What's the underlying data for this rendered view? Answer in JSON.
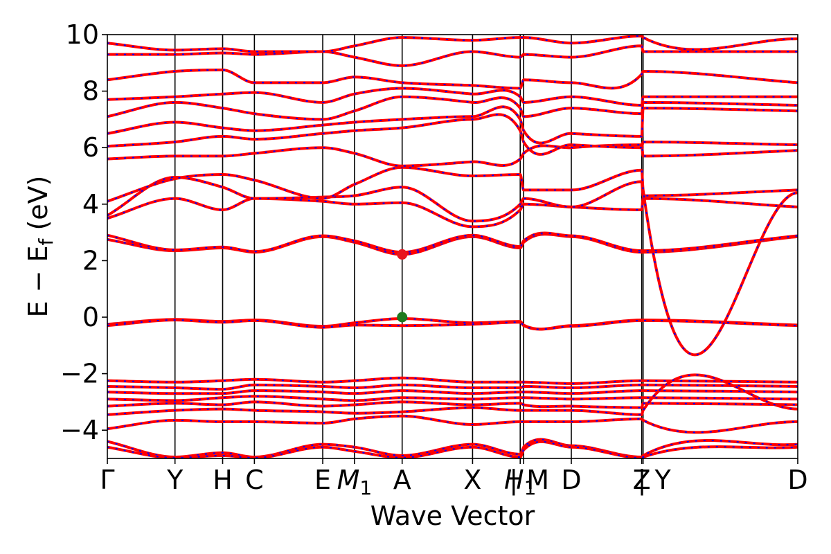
{
  "chart_data": {
    "type": "line",
    "title": "",
    "xlabel": "Wave Vector",
    "ylabel": "E − E_f (eV)",
    "ylim": [
      -5,
      10
    ],
    "yticks": [
      -4,
      -2,
      0,
      2,
      4,
      6,
      8,
      10
    ],
    "ytick_labels": [
      "−4",
      "−2",
      "0",
      "2",
      "4",
      "6",
      "8",
      "10"
    ],
    "xlim": [
      0,
      10
    ],
    "kpoints": [
      {
        "label": "Γ",
        "x": 0
      },
      {
        "label": "Y",
        "x": 0.98
      },
      {
        "label": "H",
        "x": 1.67
      },
      {
        "label": "C",
        "x": 2.13
      },
      {
        "label": "E",
        "x": 3.12
      },
      {
        "label": "M",
        "sub": "1",
        "italic": true,
        "x": 3.58
      },
      {
        "label": "A",
        "x": 4.27
      },
      {
        "label": "X",
        "x": 5.29
      },
      {
        "label": "H",
        "sub": "1",
        "italic": true,
        "x": 5.98
      },
      {
        "label": "| M",
        "x": 6.03
      },
      {
        "label": "D",
        "x": 6.72
      },
      {
        "label": "Z",
        "x": 7.74
      },
      {
        "label": "| Y",
        "x": 7.76
      },
      {
        "label": "D",
        "x": 10
      }
    ],
    "vertical_lines": [
      0.98,
      1.67,
      2.13,
      3.12,
      3.58,
      4.27,
      5.29,
      5.98,
      6.03,
      6.72,
      7.74,
      7.76
    ],
    "markers": [
      {
        "name": "cbm",
        "x": 4.27,
        "y": 2.22,
        "color": "#e8141e"
      },
      {
        "name": "vbm",
        "x": 4.27,
        "y": 0.0,
        "color": "#1f7a1f"
      }
    ],
    "style": {
      "band_color": "#ff0000",
      "overlay_color": "#0000ff"
    },
    "series": [
      {
        "x": [
          0,
          0.98,
          1.67,
          2.13,
          3.12,
          3.58,
          4.27,
          5.29,
          5.98,
          6.03,
          6.72,
          7.74,
          7.76,
          10
        ],
        "y": [
          -0.25,
          -0.08,
          -0.15,
          -0.1,
          -0.32,
          -0.2,
          -0.05,
          -0.2,
          -0.15,
          -0.28,
          -0.3,
          -0.1,
          -0.1,
          -0.28
        ]
      },
      {
        "x": [
          0,
          0.98,
          1.67,
          2.13,
          3.12,
          3.58,
          4.27,
          5.29,
          5.98,
          6.03,
          6.72,
          7.74,
          7.76,
          10
        ],
        "y": [
          -0.3,
          -0.1,
          -0.18,
          -0.12,
          -0.36,
          -0.28,
          -0.3,
          -0.25,
          -0.18,
          -0.3,
          -0.32,
          -0.12,
          -0.12,
          -0.3
        ]
      },
      {
        "x": [
          0,
          0.98,
          1.67,
          2.13,
          3.12,
          3.58,
          4.27,
          5.29,
          5.98,
          6.03,
          6.72,
          7.74,
          7.76,
          10
        ],
        "y": [
          2.75,
          2.35,
          2.45,
          2.3,
          2.85,
          2.65,
          2.22,
          2.85,
          2.45,
          2.65,
          2.85,
          2.3,
          2.3,
          2.85
        ]
      },
      {
        "x": [
          0,
          0.98,
          1.67,
          2.13,
          3.12,
          3.58,
          4.27,
          5.29,
          5.98,
          6.03,
          6.72,
          7.74,
          7.76,
          10
        ],
        "y": [
          2.9,
          2.38,
          2.48,
          2.32,
          2.88,
          2.7,
          2.3,
          2.9,
          2.5,
          2.7,
          2.88,
          2.35,
          2.35,
          2.88
        ]
      },
      {
        "x": [
          0,
          0.98,
          1.67,
          2.13,
          3.12,
          3.58,
          4.27,
          5.29,
          5.98,
          6.03,
          6.72,
          7.74,
          7.76,
          10
        ],
        "y": [
          3.5,
          4.2,
          3.8,
          4.2,
          4.1,
          4.0,
          4.05,
          3.2,
          3.8,
          4.0,
          3.9,
          3.8,
          4.2,
          3.9
        ]
      },
      {
        "x": [
          0,
          0.98,
          1.67,
          2.13,
          3.12,
          3.58,
          4.27,
          5.29,
          5.98,
          6.03,
          6.72,
          7.74,
          7.76,
          10
        ],
        "y": [
          3.6,
          4.95,
          4.6,
          4.2,
          4.25,
          4.3,
          4.6,
          3.4,
          4.0,
          4.2,
          3.9,
          4.8,
          4.3,
          4.5
        ]
      },
      {
        "x": [
          0,
          0.98,
          1.67,
          2.13,
          3.12,
          3.58,
          4.27,
          5.29,
          5.98,
          6.03,
          6.72,
          7.74,
          7.76,
          10
        ],
        "y": [
          4.1,
          4.9,
          5.05,
          4.85,
          4.2,
          4.7,
          5.3,
          5.0,
          5.05,
          4.5,
          4.5,
          5.2,
          4.5,
          4.4
        ]
      },
      {
        "x": [
          0,
          0.98,
          1.67,
          2.13,
          3.12,
          3.58,
          4.27,
          5.29,
          5.98,
          6.03,
          6.72,
          7.74,
          7.76,
          10
        ],
        "y": [
          5.6,
          5.7,
          5.7,
          5.8,
          6.0,
          5.8,
          5.35,
          5.5,
          5.6,
          5.8,
          6.0,
          6.1,
          5.7,
          5.9
        ]
      },
      {
        "x": [
          0,
          0.98,
          1.67,
          2.13,
          3.12,
          3.58,
          4.27,
          5.29,
          5.98,
          6.03,
          6.72,
          7.74,
          7.76,
          10
        ],
        "y": [
          6.05,
          6.2,
          6.4,
          6.3,
          6.5,
          6.6,
          6.7,
          7.0,
          6.6,
          6.2,
          6.1,
          6.0,
          6.2,
          6.1
        ]
      },
      {
        "x": [
          0,
          0.98,
          1.67,
          2.13,
          3.12,
          3.58,
          4.27,
          5.29,
          5.98,
          6.03,
          6.72,
          7.74,
          7.76,
          10
        ],
        "y": [
          6.5,
          6.9,
          6.7,
          6.6,
          6.8,
          6.9,
          7.0,
          7.1,
          7.0,
          6.6,
          6.5,
          6.4,
          7.4,
          7.3
        ]
      },
      {
        "x": [
          0,
          0.98,
          1.67,
          2.13,
          3.12,
          3.58,
          4.27,
          5.29,
          5.98,
          6.03,
          6.72,
          7.74,
          7.76,
          10
        ],
        "y": [
          7.1,
          7.6,
          7.4,
          7.2,
          7.0,
          7.3,
          7.8,
          7.6,
          7.4,
          7.1,
          7.4,
          7.2,
          7.6,
          7.5
        ]
      },
      {
        "x": [
          0,
          0.98,
          1.67,
          2.13,
          3.12,
          3.58,
          4.27,
          5.29,
          5.98,
          6.03,
          6.72,
          7.74,
          7.76,
          10
        ],
        "y": [
          7.7,
          7.8,
          7.9,
          7.95,
          7.6,
          7.9,
          8.1,
          7.9,
          7.8,
          7.6,
          7.8,
          7.5,
          7.8,
          7.8
        ]
      },
      {
        "x": [
          0,
          0.98,
          1.67,
          2.13,
          3.12,
          3.58,
          4.27,
          5.29,
          5.98,
          6.03,
          6.72,
          7.74,
          7.76,
          10
        ],
        "y": [
          8.4,
          8.7,
          8.75,
          8.3,
          8.3,
          8.5,
          8.3,
          8.2,
          8.1,
          8.4,
          8.3,
          8.6,
          8.7,
          8.3
        ]
      },
      {
        "x": [
          0,
          0.98,
          1.67,
          2.13,
          3.12,
          3.58,
          4.27,
          5.29,
          5.98,
          6.03,
          6.72,
          7.74,
          7.76,
          10
        ],
        "y": [
          9.3,
          9.3,
          9.35,
          9.3,
          9.4,
          9.2,
          8.9,
          9.4,
          9.2,
          9.3,
          9.2,
          9.6,
          9.4,
          9.4
        ]
      },
      {
        "x": [
          0,
          0.98,
          1.67,
          2.13,
          3.12,
          3.58,
          4.27,
          5.29,
          5.98,
          6.03,
          6.72,
          7.74,
          7.76,
          10
        ],
        "y": [
          9.7,
          9.45,
          9.5,
          9.4,
          9.4,
          9.6,
          9.9,
          9.8,
          9.9,
          9.9,
          9.7,
          9.95,
          9.9,
          9.85
        ]
      },
      {
        "x": [
          0,
          0.98,
          1.67,
          2.13,
          3.12,
          3.58,
          4.27,
          5.29,
          5.98,
          6.03,
          6.72,
          7.74,
          7.76,
          10
        ],
        "y": [
          -2.25,
          -2.3,
          -2.25,
          -2.2,
          -2.3,
          -2.25,
          -2.15,
          -2.3,
          -2.3,
          -2.3,
          -2.35,
          -2.25,
          -2.25,
          -2.3
        ]
      },
      {
        "x": [
          0,
          0.98,
          1.67,
          2.13,
          3.12,
          3.58,
          4.27,
          5.29,
          5.98,
          6.03,
          6.72,
          7.74,
          7.76,
          10
        ],
        "y": [
          -2.45,
          -2.5,
          -2.55,
          -2.4,
          -2.45,
          -2.5,
          -2.4,
          -2.5,
          -2.5,
          -2.45,
          -2.5,
          -2.4,
          -2.4,
          -2.45
        ]
      },
      {
        "x": [
          0,
          0.98,
          1.67,
          2.13,
          3.12,
          3.58,
          4.27,
          5.29,
          5.98,
          6.03,
          6.72,
          7.74,
          7.76,
          10
        ],
        "y": [
          -2.65,
          -2.7,
          -2.7,
          -2.6,
          -2.65,
          -2.7,
          -2.6,
          -2.7,
          -2.65,
          -2.65,
          -2.7,
          -2.6,
          -2.6,
          -2.65
        ]
      },
      {
        "x": [
          0,
          0.98,
          1.67,
          2.13,
          3.12,
          3.58,
          4.27,
          5.29,
          5.98,
          6.03,
          6.72,
          7.74,
          7.76,
          10
        ],
        "y": [
          -2.9,
          -2.95,
          -2.85,
          -2.8,
          -2.9,
          -2.95,
          -2.85,
          -2.9,
          -2.85,
          -2.85,
          -2.9,
          -2.85,
          -2.85,
          -2.9
        ]
      },
      {
        "x": [
          0,
          0.98,
          1.67,
          2.13,
          3.12,
          3.58,
          4.27,
          5.29,
          5.98,
          6.03,
          6.72,
          7.74,
          7.76,
          10
        ],
        "y": [
          -3.15,
          -3.05,
          -3.1,
          -3.0,
          -3.15,
          -3.1,
          -3.0,
          -3.1,
          -3.05,
          -3.1,
          -3.15,
          -3.2,
          -3.05,
          -3.1
        ]
      },
      {
        "x": [
          0,
          0.98,
          1.67,
          2.13,
          3.12,
          3.58,
          4.27,
          5.29,
          5.98,
          6.03,
          6.72,
          7.74,
          7.76,
          10
        ],
        "y": [
          -3.45,
          -3.3,
          -3.25,
          -3.3,
          -3.35,
          -3.4,
          -3.35,
          -3.2,
          -3.3,
          -3.3,
          -3.3,
          -3.45,
          -3.3,
          -3.25
        ]
      },
      {
        "x": [
          0,
          0.98,
          1.67,
          2.13,
          3.12,
          3.58,
          4.27,
          5.29,
          5.98,
          6.03,
          6.72,
          7.74,
          7.76,
          10
        ],
        "y": [
          -3.95,
          -3.65,
          -3.7,
          -3.7,
          -3.75,
          -3.6,
          -3.5,
          -3.8,
          -3.7,
          -3.7,
          -3.7,
          -3.6,
          -3.65,
          -3.7
        ]
      },
      {
        "x": [
          0,
          0.98,
          1.67,
          2.13,
          3.12,
          3.58,
          4.27,
          5.29,
          5.98,
          6.03,
          6.72,
          7.74,
          7.76,
          10
        ],
        "y": [
          -4.4,
          -4.95,
          -4.8,
          -4.95,
          -4.5,
          -4.6,
          -4.9,
          -4.5,
          -4.85,
          -4.6,
          -4.55,
          -4.95,
          -4.9,
          -4.5
        ]
      },
      {
        "x": [
          0,
          0.98,
          1.67,
          2.13,
          3.12,
          3.58,
          4.27,
          5.29,
          5.98,
          6.03,
          6.72,
          7.74,
          7.76,
          10
        ],
        "y": [
          -4.6,
          -4.98,
          -4.9,
          -4.98,
          -4.6,
          -4.75,
          -4.97,
          -4.6,
          -4.95,
          -4.7,
          -4.6,
          -4.98,
          -4.95,
          -4.6
        ]
      }
    ]
  }
}
